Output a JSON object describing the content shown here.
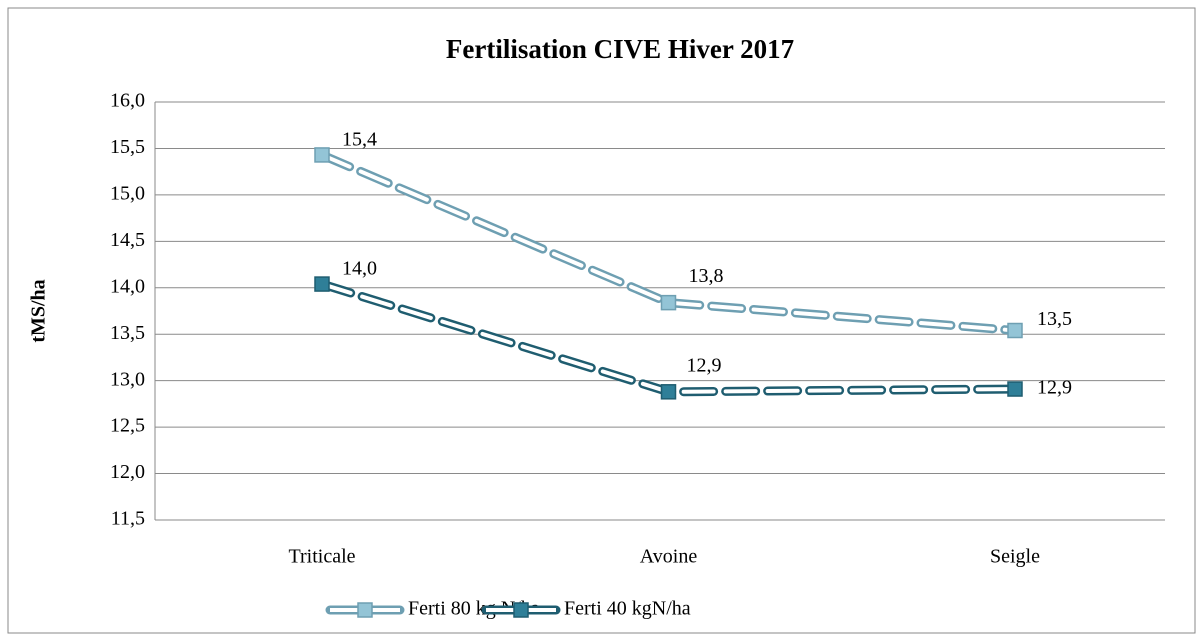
{
  "chart_data": {
    "type": "line",
    "title": "Fertilisation CIVE Hiver 2017",
    "y_label": "tMS/ha",
    "categories": [
      "Triticale",
      "Avoine",
      "Seigle"
    ],
    "series": [
      {
        "name": "Ferti 80 kg N/ha",
        "color": "#93c4d6",
        "values": [
          15.43,
          13.84,
          13.54
        ],
        "value_labels": [
          "15,4",
          "13,8",
          "13,5"
        ]
      },
      {
        "name": "Ferti 40 kgN/ha",
        "color": "#2f7f98",
        "values": [
          14.04,
          12.88,
          12.91
        ],
        "value_labels": [
          "14,0",
          "12,9",
          "12,9"
        ]
      }
    ],
    "ylim": [
      11.5,
      16
    ],
    "yticks": [
      {
        "value": 11.5,
        "label": "11,5"
      },
      {
        "value": 12,
        "label": "12,0"
      },
      {
        "value": 12.5,
        "label": "12,5"
      },
      {
        "value": 13,
        "label": "13,0"
      },
      {
        "value": 13.5,
        "label": "13,5"
      },
      {
        "value": 14,
        "label": "14,0"
      },
      {
        "value": 14.5,
        "label": "14,5"
      },
      {
        "value": 15,
        "label": "15,0"
      },
      {
        "value": 15.5,
        "label": "15,5"
      },
      {
        "value": 16,
        "label": "16,0"
      }
    ],
    "grid": true,
    "legend": "bottom"
  }
}
